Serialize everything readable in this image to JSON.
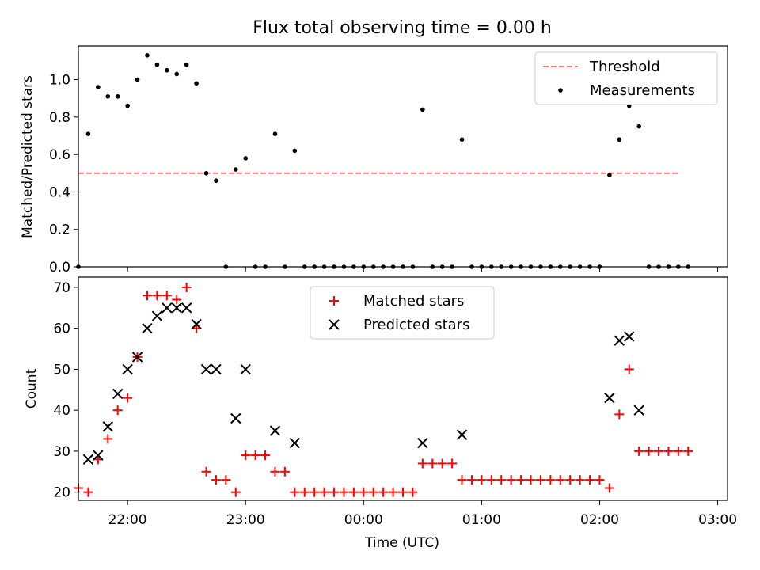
{
  "chart_data": [
    {
      "type": "scatter",
      "title": "Flux total observing time = 0.00 h",
      "xlabel": "",
      "ylabel": "Matched/Predicted stars",
      "xlim": [
        "21:35",
        "03:05"
      ],
      "ylim": [
        0,
        1.18
      ],
      "yticks": [
        "0.0",
        "0.2",
        "0.4",
        "0.6",
        "0.8",
        "1.0"
      ],
      "threshold": {
        "name": "Threshold",
        "value": 0.5,
        "x_range": [
          "21:35",
          "02:40"
        ],
        "color": "#ff7373",
        "style": "dashed"
      },
      "series": [
        {
          "name": "Measurements",
          "color": "#000000",
          "marker": "dot",
          "points": [
            [
              "21:35",
              0.0
            ],
            [
              "21:40",
              0.71
            ],
            [
              "21:45",
              0.96
            ],
            [
              "21:50",
              0.91
            ],
            [
              "21:55",
              0.91
            ],
            [
              "22:00",
              0.86
            ],
            [
              "22:05",
              1.0
            ],
            [
              "22:10",
              1.13
            ],
            [
              "22:15",
              1.08
            ],
            [
              "22:20",
              1.05
            ],
            [
              "22:25",
              1.03
            ],
            [
              "22:30",
              1.08
            ],
            [
              "22:35",
              0.98
            ],
            [
              "22:40",
              0.5
            ],
            [
              "22:45",
              0.46
            ],
            [
              "22:50",
              0.0
            ],
            [
              "22:55",
              0.52
            ],
            [
              "23:00",
              0.58
            ],
            [
              "23:05",
              0.0
            ],
            [
              "23:10",
              0.0
            ],
            [
              "23:15",
              0.71
            ],
            [
              "23:20",
              0.0
            ],
            [
              "23:25",
              0.62
            ],
            [
              "23:30",
              0.0
            ],
            [
              "23:35",
              0.0
            ],
            [
              "23:40",
              0.0
            ],
            [
              "23:45",
              0.0
            ],
            [
              "23:50",
              0.0
            ],
            [
              "23:55",
              0.0
            ],
            [
              "00:00",
              0.0
            ],
            [
              "00:05",
              0.0
            ],
            [
              "00:10",
              0.0
            ],
            [
              "00:15",
              0.0
            ],
            [
              "00:20",
              0.0
            ],
            [
              "00:25",
              0.0
            ],
            [
              "00:30",
              0.84
            ],
            [
              "00:35",
              0.0
            ],
            [
              "00:40",
              0.0
            ],
            [
              "00:45",
              0.0
            ],
            [
              "00:50",
              0.68
            ],
            [
              "00:55",
              0.0
            ],
            [
              "01:00",
              0.0
            ],
            [
              "01:05",
              0.0
            ],
            [
              "01:10",
              0.0
            ],
            [
              "01:15",
              0.0
            ],
            [
              "01:20",
              0.0
            ],
            [
              "01:25",
              0.0
            ],
            [
              "01:30",
              0.0
            ],
            [
              "01:35",
              0.0
            ],
            [
              "01:40",
              0.0
            ],
            [
              "01:45",
              0.0
            ],
            [
              "01:50",
              0.0
            ],
            [
              "01:55",
              0.0
            ],
            [
              "02:00",
              0.0
            ],
            [
              "02:05",
              0.49
            ],
            [
              "02:10",
              0.68
            ],
            [
              "02:15",
              0.86
            ],
            [
              "02:20",
              0.75
            ],
            [
              "02:25",
              0.0
            ],
            [
              "02:30",
              0.0
            ],
            [
              "02:35",
              0.0
            ],
            [
              "02:40",
              0.0
            ],
            [
              "02:45",
              0.0
            ]
          ]
        }
      ],
      "legend_position": "top-right"
    },
    {
      "type": "scatter",
      "title": "",
      "xlabel": "Time (UTC)",
      "ylabel": "Count",
      "xlim": [
        "21:35",
        "03:05"
      ],
      "ylim": [
        18,
        72.5
      ],
      "xticks": [
        "22:00",
        "23:00",
        "00:00",
        "01:00",
        "02:00",
        "03:00"
      ],
      "yticks": [
        "20",
        "30",
        "40",
        "50",
        "60",
        "70"
      ],
      "series": [
        {
          "name": "Matched stars",
          "color": "#ff0000",
          "marker": "plus",
          "points": [
            [
              "21:35",
              21
            ],
            [
              "21:40",
              20
            ],
            [
              "21:45",
              28
            ],
            [
              "21:50",
              33
            ],
            [
              "21:55",
              40
            ],
            [
              "22:00",
              43
            ],
            [
              "22:05",
              53
            ],
            [
              "22:10",
              68
            ],
            [
              "22:15",
              68
            ],
            [
              "22:20",
              68
            ],
            [
              "22:25",
              67
            ],
            [
              "22:30",
              70
            ],
            [
              "22:35",
              60
            ],
            [
              "22:40",
              25
            ],
            [
              "22:45",
              23
            ],
            [
              "22:50",
              23
            ],
            [
              "22:55",
              20
            ],
            [
              "23:00",
              29
            ],
            [
              "23:05",
              29
            ],
            [
              "23:10",
              29
            ],
            [
              "23:15",
              25
            ],
            [
              "23:20",
              25
            ],
            [
              "23:25",
              20
            ],
            [
              "23:30",
              20
            ],
            [
              "23:35",
              20
            ],
            [
              "23:40",
              20
            ],
            [
              "23:45",
              20
            ],
            [
              "23:50",
              20
            ],
            [
              "23:55",
              20
            ],
            [
              "00:00",
              20
            ],
            [
              "00:05",
              20
            ],
            [
              "00:10",
              20
            ],
            [
              "00:15",
              20
            ],
            [
              "00:20",
              20
            ],
            [
              "00:25",
              20
            ],
            [
              "00:30",
              27
            ],
            [
              "00:35",
              27
            ],
            [
              "00:40",
              27
            ],
            [
              "00:45",
              27
            ],
            [
              "00:50",
              23
            ],
            [
              "00:55",
              23
            ],
            [
              "01:00",
              23
            ],
            [
              "01:05",
              23
            ],
            [
              "01:10",
              23
            ],
            [
              "01:15",
              23
            ],
            [
              "01:20",
              23
            ],
            [
              "01:25",
              23
            ],
            [
              "01:30",
              23
            ],
            [
              "01:35",
              23
            ],
            [
              "01:40",
              23
            ],
            [
              "01:45",
              23
            ],
            [
              "01:50",
              23
            ],
            [
              "01:55",
              23
            ],
            [
              "02:00",
              23
            ],
            [
              "02:05",
              21
            ],
            [
              "02:10",
              39
            ],
            [
              "02:15",
              50
            ],
            [
              "02:20",
              30
            ],
            [
              "02:25",
              30
            ],
            [
              "02:30",
              30
            ],
            [
              "02:35",
              30
            ],
            [
              "02:40",
              30
            ],
            [
              "02:45",
              30
            ]
          ]
        },
        {
          "name": "Predicted stars",
          "color": "#000000",
          "marker": "x",
          "points": [
            [
              "21:40",
              28
            ],
            [
              "21:45",
              29
            ],
            [
              "21:50",
              36
            ],
            [
              "21:55",
              44
            ],
            [
              "22:00",
              50
            ],
            [
              "22:05",
              53
            ],
            [
              "22:10",
              60
            ],
            [
              "22:15",
              63
            ],
            [
              "22:20",
              65
            ],
            [
              "22:25",
              65
            ],
            [
              "22:30",
              65
            ],
            [
              "22:35",
              61
            ],
            [
              "22:40",
              50
            ],
            [
              "22:45",
              50
            ],
            [
              "22:55",
              38
            ],
            [
              "23:00",
              50
            ],
            [
              "23:15",
              35
            ],
            [
              "23:25",
              32
            ],
            [
              "00:30",
              32
            ],
            [
              "00:50",
              34
            ],
            [
              "02:05",
              43
            ],
            [
              "02:10",
              57
            ],
            [
              "02:15",
              58
            ],
            [
              "02:20",
              40
            ]
          ]
        }
      ],
      "legend_position": "upper-center"
    }
  ]
}
